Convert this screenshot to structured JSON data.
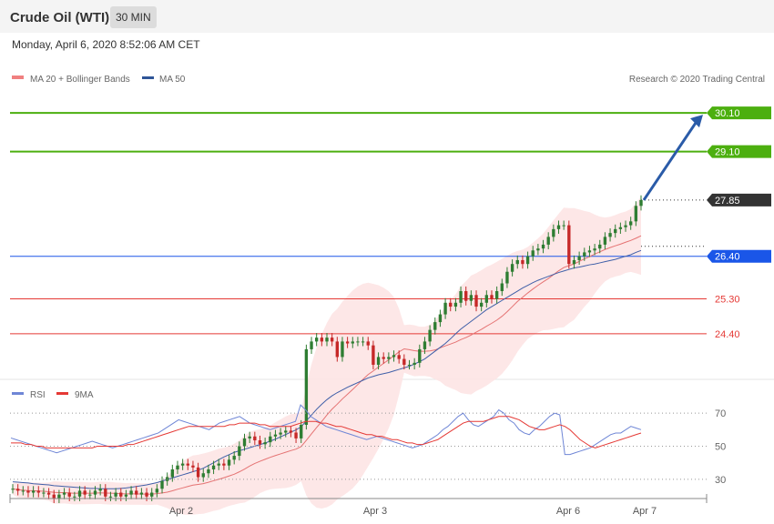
{
  "header": {
    "title": "Crude Oil (WTI)",
    "timeframe": "30 MIN"
  },
  "date": "Monday, April 6, 2020 8:52:06 AM CET",
  "legend": {
    "ma20": "MA 20 + Bollinger Bands",
    "ma50": "MA 50",
    "credit": "Research © 2020 Trading Central"
  },
  "rsi_legend": {
    "rsi": "RSI",
    "ma9": "9MA"
  },
  "colors": {
    "up": "#2e7d32",
    "down": "#c62828",
    "band": "#fde3e3",
    "ma20": "#e57373",
    "ma50": "#3f5fa8",
    "resistance": "#4caf0f",
    "pivot": "#1a56e8",
    "support": "#e53935",
    "arrow": "#2a5ba8",
    "rsi": "#6f86d6",
    "rsi_ma": "#e53935"
  },
  "chart_data": [
    {
      "type": "candlestick",
      "x_ticks": [
        "Apr 2",
        "Apr 3",
        "Apr 6",
        "Apr 7"
      ],
      "ylim": [
        23.2,
        30.9
      ],
      "levels": [
        {
          "value": 30.1,
          "label": "30.10",
          "kind": "resistance"
        },
        {
          "value": 29.1,
          "label": "29.10",
          "kind": "resistance"
        },
        {
          "value": 27.85,
          "label": "27.85",
          "kind": "last"
        },
        {
          "value": 26.4,
          "label": "26.40",
          "kind": "pivot"
        },
        {
          "value": 25.3,
          "label": "25.30",
          "kind": "support"
        },
        {
          "value": 24.4,
          "label": "24.40",
          "kind": "support"
        }
      ],
      "closes": [
        20.4,
        20.35,
        20.35,
        20.3,
        20.35,
        20.3,
        20.3,
        20.25,
        20.15,
        20.25,
        20.3,
        20.2,
        20.2,
        20.35,
        20.25,
        20.25,
        20.35,
        20.4,
        20.2,
        20.2,
        20.3,
        20.2,
        20.25,
        20.35,
        20.25,
        20.3,
        20.2,
        20.3,
        20.4,
        20.6,
        20.7,
        20.9,
        21.0,
        21.05,
        21.0,
        20.95,
        20.7,
        20.8,
        20.9,
        21.0,
        21.05,
        21.0,
        21.15,
        21.25,
        21.5,
        21.7,
        21.75,
        21.65,
        21.55,
        21.6,
        21.75,
        21.8,
        21.85,
        21.9,
        21.85,
        21.7,
        22.05,
        24.0,
        24.2,
        24.3,
        24.2,
        24.3,
        24.2,
        23.8,
        24.2,
        24.15,
        24.2,
        24.2,
        24.2,
        24.1,
        23.6,
        23.8,
        23.75,
        23.8,
        23.85,
        23.75,
        23.6,
        23.6,
        23.65,
        24.0,
        24.2,
        24.5,
        24.7,
        24.9,
        25.2,
        25.1,
        25.2,
        25.5,
        25.25,
        25.4,
        25.1,
        25.2,
        25.4,
        25.3,
        25.5,
        25.7,
        26.0,
        26.2,
        26.3,
        26.2,
        26.4,
        26.55,
        26.6,
        26.7,
        26.9,
        27.1,
        27.2,
        27.2,
        26.2,
        26.3,
        26.4,
        26.5,
        26.55,
        26.6,
        26.7,
        26.9,
        27.0,
        27.1,
        27.15,
        27.2,
        27.3,
        27.7,
        27.85
      ],
      "ma50": [
        20.58,
        20.57,
        20.56,
        20.55,
        20.53,
        20.52,
        20.51,
        20.5,
        20.48,
        20.47,
        20.46,
        20.45,
        20.44,
        20.43,
        20.42,
        20.41,
        20.41,
        20.4,
        20.4,
        20.4,
        20.4,
        20.41,
        20.42,
        20.44,
        20.46,
        20.48,
        20.5,
        20.53,
        20.56,
        20.6,
        20.64,
        20.68,
        20.72,
        20.76,
        20.8,
        20.84,
        20.88,
        20.93,
        21.0,
        21.07,
        21.15,
        21.22,
        21.28,
        21.34,
        21.38,
        21.42,
        21.46,
        21.5,
        21.54,
        21.58,
        21.63,
        21.68,
        21.74,
        21.8,
        21.86,
        21.92,
        22.0,
        22.15,
        22.3,
        22.45,
        22.58,
        22.7,
        22.8,
        22.88,
        22.95,
        23.02,
        23.08,
        23.14,
        23.2,
        23.26,
        23.3,
        23.34,
        23.37,
        23.4,
        23.44,
        23.48,
        23.52,
        23.56,
        23.62,
        23.68,
        23.75,
        23.85,
        23.95,
        24.05,
        24.15,
        24.27,
        24.4,
        24.52,
        24.62,
        24.72,
        24.82,
        24.92,
        25.02,
        25.1,
        25.18,
        25.26,
        25.34,
        25.42,
        25.5,
        25.58,
        25.65,
        25.72,
        25.78,
        25.83,
        25.88,
        25.93,
        25.98,
        26.02,
        26.06,
        26.1,
        26.12,
        26.15,
        26.18,
        26.2,
        26.23,
        26.26,
        26.29,
        26.32,
        26.36,
        26.4,
        26.44,
        26.5,
        26.55
      ]
    },
    {
      "type": "line",
      "name": "RSI",
      "y_ticks": [
        70,
        50,
        30
      ],
      "ylim": [
        20,
        80
      ],
      "rsi": [
        55,
        54,
        53,
        52,
        51,
        50,
        49,
        48,
        47,
        46,
        47,
        48,
        49,
        50,
        51,
        52,
        53,
        52,
        51,
        50,
        49,
        50,
        51,
        52,
        53,
        54,
        55,
        56,
        57,
        58,
        60,
        62,
        64,
        66,
        65,
        64,
        63,
        62,
        61,
        60,
        62,
        64,
        65,
        66,
        67,
        68,
        66,
        64,
        63,
        62,
        61,
        60,
        61,
        62,
        63,
        64,
        65,
        75,
        72,
        68,
        66,
        64,
        62,
        61,
        60,
        59,
        58,
        57,
        56,
        55,
        54,
        55,
        56,
        55,
        54,
        53,
        52,
        51,
        50,
        49,
        50,
        51,
        53,
        55,
        57,
        60,
        62,
        65,
        68,
        70,
        66,
        63,
        62,
        64,
        66,
        68,
        72,
        70,
        66,
        64,
        60,
        58,
        57,
        60,
        62,
        65,
        68,
        70,
        69,
        45,
        45,
        46,
        47,
        48,
        49,
        51,
        53,
        55,
        57,
        58,
        58,
        60,
        62,
        61,
        60
      ],
      "ma9": [
        52,
        52,
        52,
        51,
        51,
        50,
        50,
        49,
        49,
        49,
        49,
        49,
        49,
        49,
        49,
        49,
        49,
        50,
        50,
        50,
        50,
        50,
        50,
        51,
        51,
        52,
        53,
        54,
        55,
        56,
        57,
        58,
        59,
        60,
        61,
        62,
        62,
        62,
        62,
        62,
        62,
        62,
        62,
        63,
        63,
        64,
        64,
        64,
        64,
        63,
        63,
        62,
        62,
        62,
        62,
        62,
        63,
        64,
        65,
        65,
        65,
        64,
        64,
        63,
        62,
        62,
        61,
        60,
        59,
        58,
        57,
        57,
        56,
        56,
        55,
        54,
        54,
        53,
        52,
        52,
        51,
        51,
        52,
        53,
        54,
        56,
        58,
        60,
        62,
        64,
        65,
        65,
        65,
        65,
        66,
        67,
        68,
        68,
        68,
        67,
        66,
        64,
        62,
        61,
        60,
        60,
        61,
        62,
        63,
        62,
        60,
        57,
        54,
        52,
        50,
        49,
        50,
        51,
        52,
        53,
        54,
        55,
        56,
        57,
        58
      ]
    }
  ]
}
